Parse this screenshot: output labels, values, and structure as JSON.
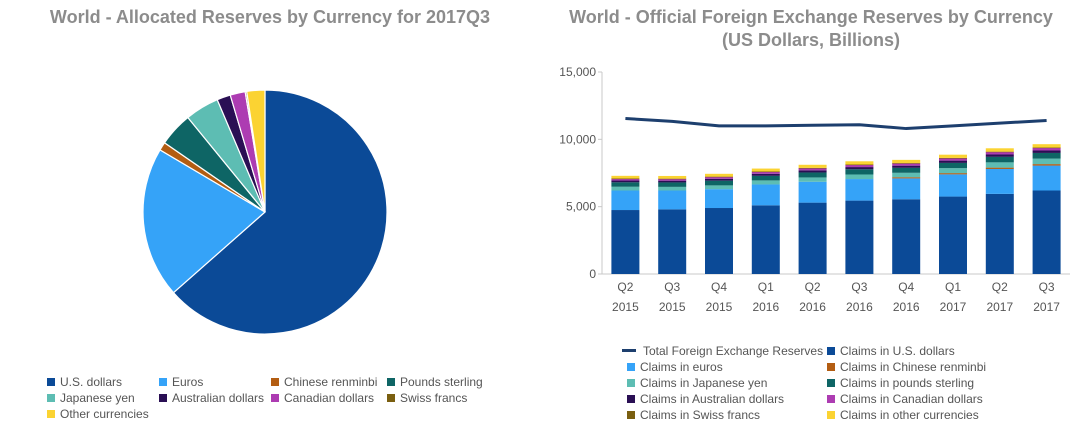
{
  "pie": {
    "title": "World - Allocated Reserves by Currency for 2017Q3",
    "chart_data": {
      "type": "pie",
      "title": "World - Allocated Reserves by Currency for 2017Q3",
      "slices": [
        {
          "name": "U.S. dollars",
          "value": 63.5,
          "color": "#0b4a97"
        },
        {
          "name": "Euros",
          "value": 20.0,
          "color": "#35a3f8"
        },
        {
          "name": "Chinese renminbi",
          "value": 1.1,
          "color": "#b35d12"
        },
        {
          "name": "Pounds sterling",
          "value": 4.5,
          "color": "#0e6565"
        },
        {
          "name": "Japanese yen",
          "value": 4.5,
          "color": "#5dbdb3"
        },
        {
          "name": "Australian dollars",
          "value": 1.8,
          "color": "#2a0f54"
        },
        {
          "name": "Canadian dollars",
          "value": 2.0,
          "color": "#ad3cb2"
        },
        {
          "name": "Swiss francs",
          "value": 0.2,
          "color": "#7a5f10"
        },
        {
          "name": "Other currencies",
          "value": 2.4,
          "color": "#fbd332"
        }
      ]
    }
  },
  "bars": {
    "title_line1": "World - Official Foreign Exchange Reserves by Currency",
    "title_line2": "(US Dollars, Billions)",
    "chart_data": {
      "type": "bar",
      "stacked": true,
      "categories": [
        "Q2 2015",
        "Q3 2015",
        "Q4 2015",
        "Q1 2016",
        "Q2 2016",
        "Q3 2016",
        "Q4 2016",
        "Q1 2017",
        "Q2 2017",
        "Q3 2017"
      ],
      "x_tick_lines": [
        [
          "Q2",
          "2015"
        ],
        [
          "Q3",
          "2015"
        ],
        [
          "Q4",
          "2015"
        ],
        [
          "Q1",
          "2016"
        ],
        [
          "Q2",
          "2016"
        ],
        [
          "Q3",
          "2016"
        ],
        [
          "Q4",
          "2016"
        ],
        [
          "Q1",
          "2017"
        ],
        [
          "Q2",
          "2017"
        ],
        [
          "Q3",
          "2017"
        ]
      ],
      "ylim": [
        0,
        15000
      ],
      "yticks": [
        0,
        5000,
        10000,
        15000
      ],
      "ytick_labels": [
        "0",
        "5,000",
        "10,000",
        "15,000"
      ],
      "grid": false,
      "legend_position": "bottom",
      "line_series": {
        "name": "Total Foreign Exchange Reserves",
        "color": "#1d3f6e",
        "values": [
          11550,
          11330,
          11000,
          11000,
          11050,
          11080,
          10800,
          11000,
          11200,
          11400
        ]
      },
      "series": [
        {
          "name": "Claims in U.S. dollars",
          "color": "#0b4a97",
          "values": [
            4750,
            4800,
            4900,
            5100,
            5300,
            5450,
            5550,
            5750,
            5950,
            6200
          ]
        },
        {
          "name": "Claims in euros",
          "color": "#35a3f8",
          "values": [
            1450,
            1400,
            1400,
            1550,
            1550,
            1600,
            1550,
            1650,
            1850,
            1850
          ]
        },
        {
          "name": "Claims in Chinese renminbi",
          "color": "#b35d12",
          "values": [
            0,
            0,
            0,
            0,
            0,
            0,
            85,
            90,
            100,
            110
          ]
        },
        {
          "name": "Claims in Japanese yen",
          "color": "#5dbdb3",
          "values": [
            280,
            270,
            280,
            300,
            320,
            340,
            330,
            370,
            390,
            410
          ]
        },
        {
          "name": "Claims in pounds sterling",
          "color": "#0e6565",
          "values": [
            330,
            330,
            350,
            340,
            370,
            390,
            370,
            390,
            410,
            420
          ]
        },
        {
          "name": "Claims in Australian dollars",
          "color": "#2a0f54",
          "values": [
            130,
            130,
            140,
            150,
            160,
            160,
            160,
            170,
            175,
            180
          ]
        },
        {
          "name": "Claims in Canadian dollars",
          "color": "#ad3cb2",
          "values": [
            130,
            130,
            140,
            150,
            160,
            170,
            170,
            180,
            190,
            200
          ]
        },
        {
          "name": "Claims in Swiss francs",
          "color": "#7a5f10",
          "values": [
            20,
            20,
            20,
            20,
            20,
            20,
            20,
            20,
            20,
            20
          ]
        },
        {
          "name": "Claims in other currencies",
          "color": "#fbd332",
          "values": [
            200,
            200,
            210,
            220,
            230,
            240,
            240,
            240,
            250,
            250
          ]
        }
      ]
    }
  },
  "legend_left": [
    "U.S. dollars",
    "Euros",
    "Chinese renminbi",
    "Pounds sterling",
    "Japanese yen",
    "Australian dollars",
    "Canadian dollars",
    "Swiss francs",
    "Other currencies"
  ],
  "legend_right": [
    "Total Foreign Exchange Reserves",
    "Claims in U.S. dollars",
    "Claims in euros",
    "Claims in Chinese renminbi",
    "Claims in Japanese yen",
    "Claims in pounds sterling",
    "Claims in Australian dollars",
    "Claims in Canadian dollars",
    "Claims in Swiss francs",
    "Claims in other currencies"
  ]
}
